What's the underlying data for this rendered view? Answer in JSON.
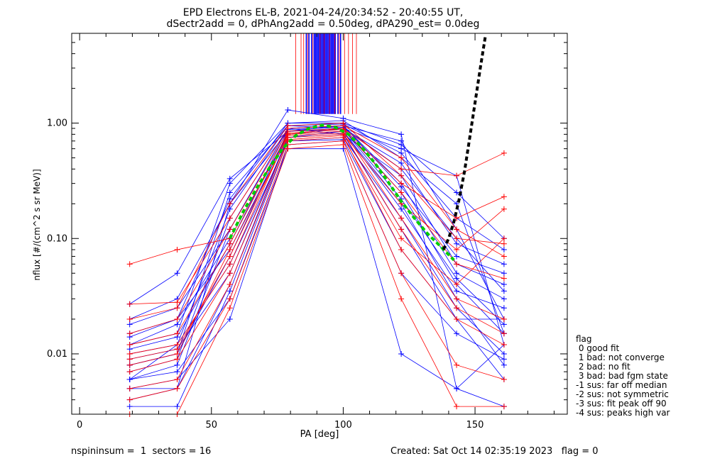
{
  "chart_data": {
    "type": "line",
    "title": "EPD Electrons EL-B, 2021-04-24/20:34:52 - 20:40:55 UT,",
    "subtitle": "dSectr2add = 0, dPhAng2add = 0.50deg, dPA290_est=   0.0deg",
    "xlabel": "PA [deg]",
    "ylabel": "nflux [#/(cm^2 s sr MeV)]",
    "xlim": [
      -3,
      185
    ],
    "ylim": [
      0.003,
      6.0
    ],
    "yscale": "log",
    "x_ticks": [
      0,
      50,
      100,
      150
    ],
    "x_tick_labels": [
      "0",
      "50",
      "100",
      "150"
    ],
    "y_ticks": [
      0.01,
      0.1,
      1.0
    ],
    "y_tick_labels": [
      "0.01",
      "0.10",
      "1.00"
    ],
    "pitch_angles": [
      19,
      37,
      57,
      79,
      100,
      122,
      143,
      161
    ],
    "series_colors": {
      "blue": "#0000ff",
      "red": "#ff0000",
      "fit": "#00cc00",
      "extrapolation": "#000000"
    },
    "series": [
      {
        "color": "blue",
        "values": [
          0.005,
          0.005,
          0.2,
          1.3,
          1.1,
          0.8,
          0.005,
          0.0035
        ]
      },
      {
        "color": "blue",
        "values": [
          0.008,
          0.01,
          0.25,
          0.95,
          0.9,
          0.6,
          0.35,
          0.012
        ]
      },
      {
        "color": "blue",
        "values": [
          0.012,
          0.015,
          0.3,
          1.0,
          1.05,
          0.5,
          0.2,
          0.015
        ]
      },
      {
        "color": "blue",
        "values": [
          0.027,
          0.05,
          0.33,
          0.85,
          0.95,
          0.7,
          0.12,
          0.02
        ]
      },
      {
        "color": "blue",
        "values": [
          0.006,
          0.008,
          0.12,
          0.9,
          0.95,
          0.3,
          0.05,
          0.03
        ]
      },
      {
        "color": "blue",
        "values": [
          0.004,
          0.005,
          0.04,
          0.75,
          0.85,
          0.2,
          0.03,
          0.008
        ]
      },
      {
        "color": "blue",
        "values": [
          0.015,
          0.02,
          0.08,
          0.8,
          0.9,
          0.25,
          0.04,
          0.015
        ]
      },
      {
        "color": "blue",
        "values": [
          0.01,
          0.012,
          0.06,
          0.7,
          0.75,
          0.15,
          0.025,
          0.01
        ]
      },
      {
        "color": "blue",
        "values": [
          0.007,
          0.009,
          0.15,
          0.9,
          0.8,
          0.35,
          0.06,
          0.04
        ]
      },
      {
        "color": "blue",
        "values": [
          0.02,
          0.03,
          0.2,
          0.85,
          0.9,
          0.45,
          0.09,
          0.06
        ]
      },
      {
        "color": "blue",
        "values": [
          0.006,
          0.007,
          0.03,
          0.6,
          0.6,
          0.01,
          0.005,
          0.012
        ]
      },
      {
        "color": "blue",
        "values": [
          0.009,
          0.011,
          0.05,
          0.75,
          0.8,
          0.12,
          0.02,
          0.02
        ]
      },
      {
        "color": "blue",
        "values": [
          0.012,
          0.018,
          0.1,
          0.8,
          0.85,
          0.18,
          0.035,
          0.025
        ]
      },
      {
        "color": "blue",
        "values": [
          0.005,
          0.006,
          0.02,
          0.65,
          0.7,
          0.05,
          0.015,
          0.009
        ]
      },
      {
        "color": "blue",
        "values": [
          0.018,
          0.025,
          0.12,
          0.9,
          0.95,
          0.28,
          0.07,
          0.05
        ]
      },
      {
        "color": "blue",
        "values": [
          0.008,
          0.01,
          0.07,
          0.85,
          0.88,
          0.22,
          0.045,
          0.018
        ]
      },
      {
        "color": "blue",
        "values": [
          0.011,
          0.014,
          0.09,
          0.88,
          0.92,
          0.4,
          0.1,
          0.035
        ]
      },
      {
        "color": "blue",
        "values": [
          0.006,
          0.012,
          0.18,
          0.95,
          0.98,
          0.55,
          0.15,
          0.08
        ]
      },
      {
        "color": "blue",
        "values": [
          0.0035,
          0.0035,
          0.035,
          0.7,
          0.72,
          0.08,
          0.02,
          0.006
        ]
      },
      {
        "color": "blue",
        "values": [
          0.014,
          0.02,
          0.22,
          1.0,
          1.0,
          0.65,
          0.25,
          0.1
        ]
      },
      {
        "color": "red",
        "values": [
          0.06,
          0.08,
          0.1,
          0.8,
          0.9,
          0.4,
          0.35,
          0.55
        ]
      },
      {
        "color": "red",
        "values": [
          0.015,
          0.02,
          0.12,
          0.85,
          0.9,
          0.3,
          0.15,
          0.23
        ]
      },
      {
        "color": "red",
        "values": [
          0.008,
          0.01,
          0.08,
          0.75,
          0.8,
          0.2,
          0.08,
          0.18
        ]
      },
      {
        "color": "red",
        "values": [
          0.005,
          0.006,
          0.04,
          0.7,
          0.75,
          0.1,
          0.04,
          0.1
        ]
      },
      {
        "color": "red",
        "values": [
          0.027,
          0.028,
          0.15,
          0.9,
          0.95,
          0.5,
          0.12,
          0.07
        ]
      },
      {
        "color": "red",
        "values": [
          0.01,
          0.012,
          0.06,
          0.8,
          0.85,
          0.15,
          0.03,
          0.02
        ]
      },
      {
        "color": "red",
        "values": [
          0.007,
          0.009,
          0.05,
          0.72,
          0.78,
          0.08,
          0.02,
          0.012
        ]
      },
      {
        "color": "red",
        "values": [
          0.004,
          0.005,
          0.03,
          0.65,
          0.7,
          0.05,
          0.008,
          0.006
        ]
      },
      {
        "color": "red",
        "values": [
          0.012,
          0.015,
          0.09,
          0.82,
          0.88,
          0.25,
          0.06,
          0.045
        ]
      },
      {
        "color": "red",
        "values": [
          0.003,
          0.003,
          0.025,
          0.6,
          0.65,
          0.03,
          0.0035,
          0.0035
        ]
      },
      {
        "color": "red",
        "values": [
          0.02,
          0.025,
          0.2,
          0.95,
          1.0,
          0.35,
          0.1,
          0.09
        ]
      },
      {
        "color": "red",
        "values": [
          0.009,
          0.011,
          0.07,
          0.78,
          0.82,
          0.12,
          0.025,
          0.015
        ]
      }
    ],
    "fit_curve": {
      "x": [
        57,
        62,
        67,
        72,
        77,
        82,
        87,
        92,
        97,
        102,
        107,
        112,
        117,
        122,
        127,
        132,
        137,
        142
      ],
      "y": [
        0.1,
        0.17,
        0.27,
        0.41,
        0.6,
        0.78,
        0.9,
        0.96,
        0.92,
        0.8,
        0.62,
        0.45,
        0.31,
        0.21,
        0.15,
        0.11,
        0.085,
        0.065
      ]
    },
    "extrapolation_curve": {
      "x": [
        138,
        140,
        142,
        144,
        146,
        148,
        150,
        152,
        154
      ],
      "y": [
        0.08,
        0.1,
        0.14,
        0.22,
        0.38,
        0.75,
        1.5,
        3.0,
        5.8
      ]
    },
    "vertical_marks": {
      "y_bottom": 1.2,
      "blue_x": [
        86,
        87,
        88,
        89,
        89.5,
        90,
        90.5,
        91,
        91.5,
        92,
        92.5,
        93,
        93.5,
        94,
        94.5,
        95,
        95.5,
        96,
        96.5,
        97,
        98,
        99
      ],
      "red_x": [
        82,
        84,
        85,
        86.5,
        88.5,
        91.2,
        92.8,
        94.8,
        96.8,
        98.5,
        100.5,
        102,
        103.5,
        105
      ]
    }
  },
  "legend": {
    "title": "flag",
    "items": [
      " 0 good fit",
      " 1 bad: not converge",
      " 2 bad: no fit",
      " 3 bad: bad fgm state",
      "-1 sus: far off median",
      "-2 sus: not symmetric",
      "-3 sus: fit peak off 90",
      "-4 sus: peaks high var"
    ]
  },
  "footer": {
    "left": "nspininsum =  1  sectors = 16",
    "right": "Created: Sat Oct 14 02:35:19 2023   flag = 0"
  }
}
